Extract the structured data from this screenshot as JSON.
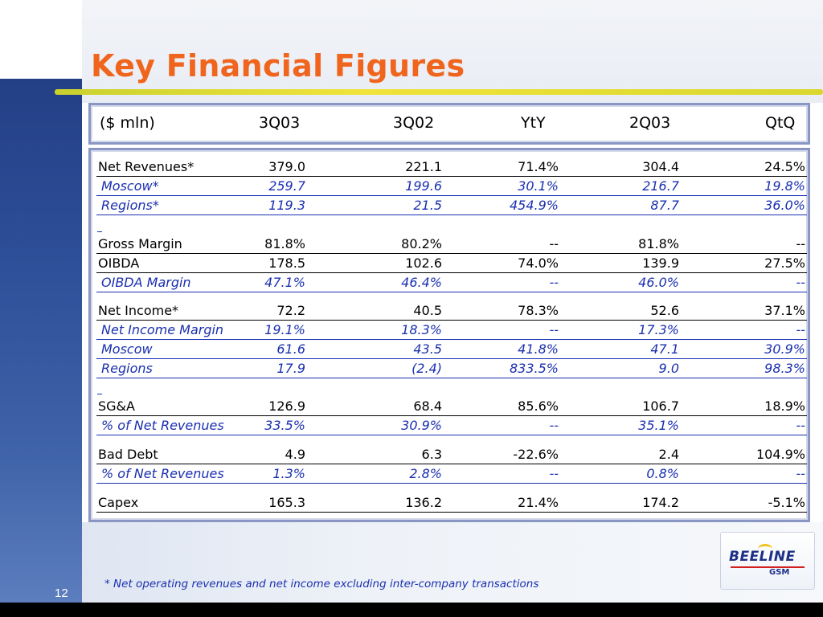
{
  "slide": {
    "title": "Key Financial Figures",
    "page_number": "12",
    "footnote": "* Net operating revenues and net income excluding inter-company transactions"
  },
  "logo": {
    "name": "BEELINE",
    "sub": "GSM"
  },
  "table": {
    "headers": [
      "($ mln)",
      "3Q03",
      "3Q02",
      "YtY",
      "2Q03",
      "QtQ"
    ],
    "rows": [
      {
        "label": "Net Revenues*",
        "values": [
          "379.0",
          "221.1",
          "71.4%",
          "304.4",
          "24.5%"
        ]
      },
      {
        "label": "Moscow*",
        "values": [
          "259.7",
          "199.6",
          "30.1%",
          "216.7",
          "19.8%"
        ]
      },
      {
        "label": "Regions*",
        "values": [
          "119.3",
          "21.5",
          "454.9%",
          "87.7",
          "36.0%"
        ]
      },
      {
        "label": "Gross Margin",
        "values": [
          "81.8%",
          "80.2%",
          "--",
          "81.8%",
          "--"
        ]
      },
      {
        "label": "OIBDA",
        "values": [
          "178.5",
          "102.6",
          "74.0%",
          "139.9",
          "27.5%"
        ]
      },
      {
        "label": "OIBDA Margin",
        "values": [
          "47.1%",
          "46.4%",
          "--",
          "46.0%",
          "--"
        ]
      },
      {
        "label": "Net Income*",
        "values": [
          "72.2",
          "40.5",
          "78.3%",
          "52.6",
          "37.1%"
        ]
      },
      {
        "label": "Net Income Margin",
        "values": [
          "19.1%",
          "18.3%",
          "--",
          "17.3%",
          "--"
        ]
      },
      {
        "label": "Moscow",
        "values": [
          "61.6",
          "43.5",
          "41.8%",
          "47.1",
          "30.9%"
        ]
      },
      {
        "label": "Regions",
        "values": [
          "17.9",
          "(2.4)",
          "833.5%",
          "9.0",
          "98.3%"
        ]
      },
      {
        "label": "SG&A",
        "values": [
          "126.9",
          "68.4",
          "85.6%",
          "106.7",
          "18.9%"
        ]
      },
      {
        "label": "% of Net Revenues",
        "values": [
          "33.5%",
          "30.9%",
          "--",
          "35.1%",
          "--"
        ]
      },
      {
        "label": "Bad Debt",
        "values": [
          "4.9",
          "6.3",
          "-22.6%",
          "2.4",
          "104.9%"
        ]
      },
      {
        "label": "% of Net Revenues",
        "values": [
          "1.3%",
          "2.8%",
          "--",
          "0.8%",
          "--"
        ]
      },
      {
        "label": "Capex",
        "values": [
          "165.3",
          "136.2",
          "21.4%",
          "174.2",
          "-5.1%"
        ]
      }
    ]
  }
}
